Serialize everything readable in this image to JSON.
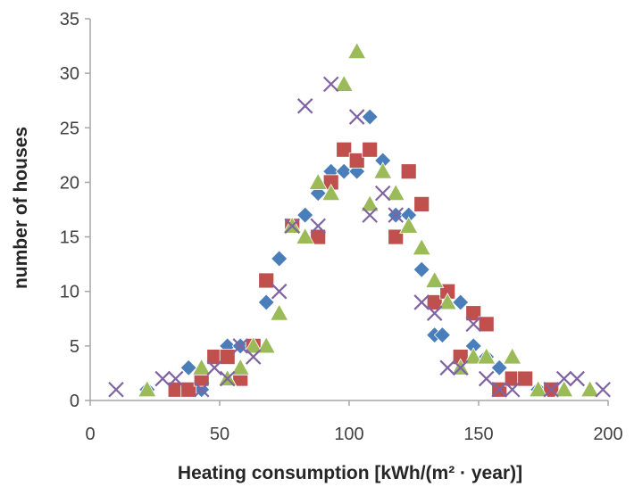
{
  "chart_data": {
    "type": "scatter",
    "title": "",
    "xlabel": "Heating consumption [kWh/(m² · year)]",
    "ylabel": "number of houses",
    "xlim": [
      0,
      200
    ],
    "ylim": [
      0,
      35
    ],
    "x_ticks": [
      "0",
      "50",
      "100",
      "150",
      "200"
    ],
    "y_ticks": [
      "0",
      "5",
      "10",
      "15",
      "20",
      "25",
      "30",
      "35"
    ],
    "grid": false,
    "legend": "none",
    "series": [
      {
        "marker": "diamond",
        "color": "#4a7ebb",
        "points": [
          [
            22,
            1
          ],
          [
            33,
            1
          ],
          [
            38,
            3
          ],
          [
            43,
            1
          ],
          [
            48,
            4
          ],
          [
            53,
            5
          ],
          [
            58,
            5
          ],
          [
            63,
            5
          ],
          [
            68,
            9
          ],
          [
            73,
            13
          ],
          [
            78,
            16
          ],
          [
            83,
            17
          ],
          [
            88,
            19
          ],
          [
            93,
            21
          ],
          [
            98,
            21
          ],
          [
            103,
            21
          ],
          [
            108,
            26
          ],
          [
            113,
            22
          ],
          [
            118,
            17
          ],
          [
            123,
            17
          ],
          [
            128,
            12
          ],
          [
            133,
            6
          ],
          [
            136,
            6
          ],
          [
            143,
            9
          ],
          [
            148,
            5
          ],
          [
            153,
            4
          ],
          [
            158,
            3
          ],
          [
            163,
            2
          ],
          [
            173,
            1
          ],
          [
            178,
            1
          ]
        ]
      },
      {
        "marker": "square",
        "color": "#c0504d",
        "points": [
          [
            33,
            1
          ],
          [
            38,
            1
          ],
          [
            43,
            2
          ],
          [
            48,
            4
          ],
          [
            53,
            4
          ],
          [
            58,
            2
          ],
          [
            63,
            5
          ],
          [
            68,
            11
          ],
          [
            78,
            16
          ],
          [
            88,
            15
          ],
          [
            93,
            20
          ],
          [
            98,
            23
          ],
          [
            103,
            22
          ],
          [
            108,
            23
          ],
          [
            118,
            15
          ],
          [
            123,
            21
          ],
          [
            128,
            18
          ],
          [
            133,
            9
          ],
          [
            138,
            10
          ],
          [
            143,
            4
          ],
          [
            148,
            8
          ],
          [
            153,
            7
          ],
          [
            158,
            1
          ],
          [
            163,
            2
          ],
          [
            168,
            2
          ],
          [
            178,
            1
          ]
        ]
      },
      {
        "marker": "triangle",
        "color": "#9bbb59",
        "points": [
          [
            22,
            1
          ],
          [
            43,
            3
          ],
          [
            53,
            2
          ],
          [
            58,
            3
          ],
          [
            63,
            5
          ],
          [
            68,
            5
          ],
          [
            73,
            8
          ],
          [
            78,
            16
          ],
          [
            83,
            15
          ],
          [
            88,
            20
          ],
          [
            93,
            19
          ],
          [
            98,
            29
          ],
          [
            103,
            32
          ],
          [
            108,
            18
          ],
          [
            113,
            21
          ],
          [
            118,
            19
          ],
          [
            123,
            16
          ],
          [
            128,
            14
          ],
          [
            133,
            11
          ],
          [
            138,
            9
          ],
          [
            143,
            3
          ],
          [
            148,
            4
          ],
          [
            153,
            4
          ],
          [
            163,
            4
          ],
          [
            173,
            1
          ],
          [
            183,
            1
          ],
          [
            193,
            1
          ]
        ]
      },
      {
        "marker": "x",
        "color": "#8064a2",
        "points": [
          [
            10,
            1
          ],
          [
            28,
            2
          ],
          [
            33,
            2
          ],
          [
            43,
            1
          ],
          [
            48,
            3
          ],
          [
            53,
            2
          ],
          [
            58,
            5
          ],
          [
            63,
            4
          ],
          [
            73,
            10
          ],
          [
            78,
            16
          ],
          [
            83,
            27
          ],
          [
            88,
            16
          ],
          [
            93,
            29
          ],
          [
            103,
            26
          ],
          [
            108,
            17
          ],
          [
            113,
            19
          ],
          [
            118,
            17
          ],
          [
            128,
            9
          ],
          [
            133,
            8
          ],
          [
            138,
            3
          ],
          [
            143,
            3
          ],
          [
            148,
            7
          ],
          [
            153,
            2
          ],
          [
            158,
            1
          ],
          [
            163,
            1
          ],
          [
            178,
            1
          ],
          [
            183,
            2
          ],
          [
            188,
            2
          ],
          [
            198,
            1
          ]
        ]
      }
    ]
  }
}
